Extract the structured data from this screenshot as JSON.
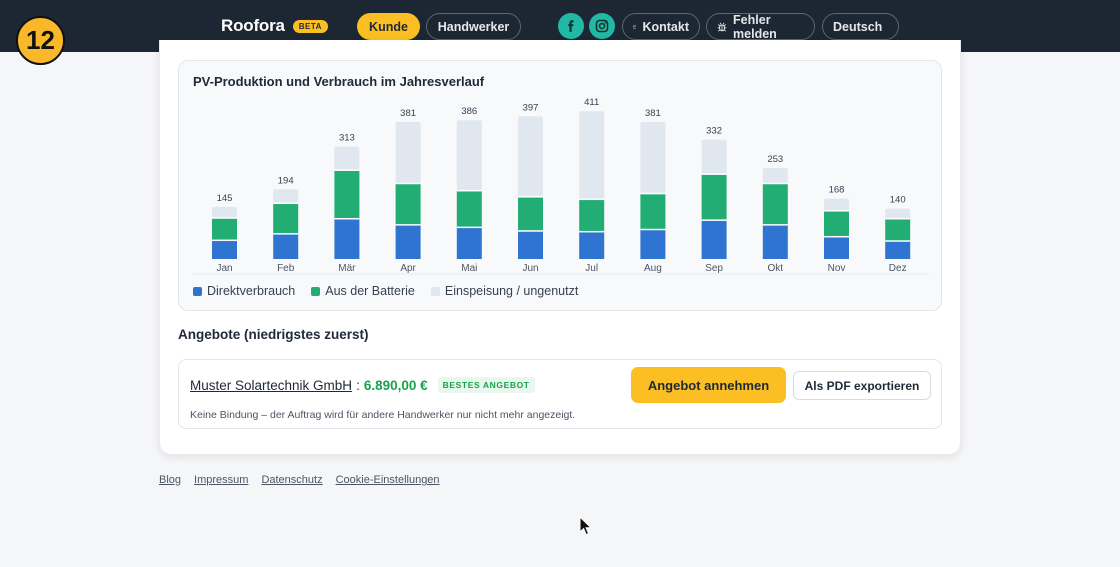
{
  "header": {
    "brand": "Roofora",
    "beta": "BETA",
    "nav": {
      "kunde": "Kunde",
      "handwerker": "Handwerker",
      "kontakt": "Kontakt",
      "fehler": "Fehler melden",
      "language": "Deutsch"
    },
    "icons": {
      "facebook": "facebook-icon",
      "instagram": "instagram-icon",
      "mail": "mail-icon",
      "bug": "bug-icon",
      "chevron": "chevron-down-icon"
    },
    "colors": {
      "bar": "#1d2733",
      "accent": "#fbbf24",
      "social": "#22b8a6"
    }
  },
  "step_badge": "12",
  "chart_data": {
    "type": "bar",
    "stacked": true,
    "title": "PV-Produktion und Verbrauch im Jahresverlauf",
    "categories": [
      "Jan",
      "Feb",
      "Mär",
      "Apr",
      "Mai",
      "Jun",
      "Jul",
      "Aug",
      "Sep",
      "Okt",
      "Nov",
      "Dez"
    ],
    "totals": [
      145,
      194,
      313,
      381,
      386,
      397,
      411,
      381,
      332,
      253,
      168,
      140
    ],
    "series": [
      {
        "name": "Direktverbrauch",
        "color": "#2f74d0",
        "values": [
          52,
          70,
          112,
          95,
          88,
          78,
          76,
          82,
          108,
          95,
          62,
          50
        ]
      },
      {
        "name": "Aus der Batterie",
        "color": "#22ad74",
        "values": [
          62,
          85,
          135,
          115,
          102,
          95,
          90,
          100,
          128,
          115,
          72,
          62
        ]
      },
      {
        "name": "Einspeisung / ungenutzt",
        "color": "#e1e7ef",
        "values": [
          31,
          39,
          66,
          171,
          196,
          224,
          245,
          199,
          96,
          43,
          34,
          28
        ]
      }
    ],
    "ylim": [
      0,
      420
    ],
    "legend_position": "bottom-left",
    "grid": false
  },
  "offers": {
    "title": "Angebote (niedrigstes zuerst)",
    "items": [
      {
        "company": "Muster Solartechnik GmbH",
        "separator": ":",
        "price": "6.890,00 €",
        "badge": "BESTES ANGEBOT",
        "note": "Keine Bindung – der Auftrag wird für andere Handwerker nur nicht mehr angezeigt.",
        "accept_label": "Angebot annehmen",
        "pdf_label": "Als PDF exportieren"
      }
    ]
  },
  "footer": {
    "links": [
      "Blog",
      "Impressum",
      "Datenschutz",
      "Cookie-Einstellungen"
    ]
  }
}
